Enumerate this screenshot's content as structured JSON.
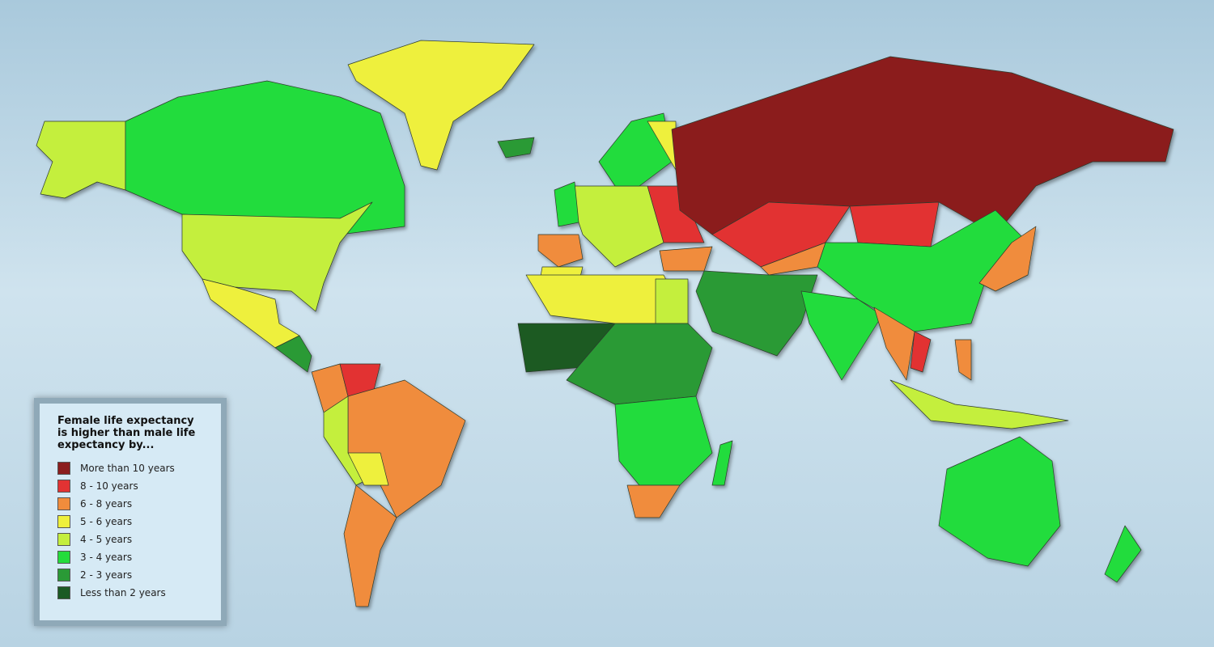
{
  "legend": {
    "title": "Female life expectancy is higher than male life expectancy by...",
    "items": [
      {
        "label": "More than 10 years",
        "color": "#8b1e1e"
      },
      {
        "label": "8 - 10 years",
        "color": "#e23333"
      },
      {
        "label": "6 - 8 years",
        "color": "#f08c3c"
      },
      {
        "label": "5 - 6 years",
        "color": "#eef03c"
      },
      {
        "label": "4 - 5 years",
        "color": "#c4ef3e"
      },
      {
        "label": "3 - 4 years",
        "color": "#24dc3c"
      },
      {
        "label": "2 - 3 years",
        "color": "#2a9a36"
      },
      {
        "label": "Less than 2 years",
        "color": "#1b5a24"
      }
    ]
  }
}
